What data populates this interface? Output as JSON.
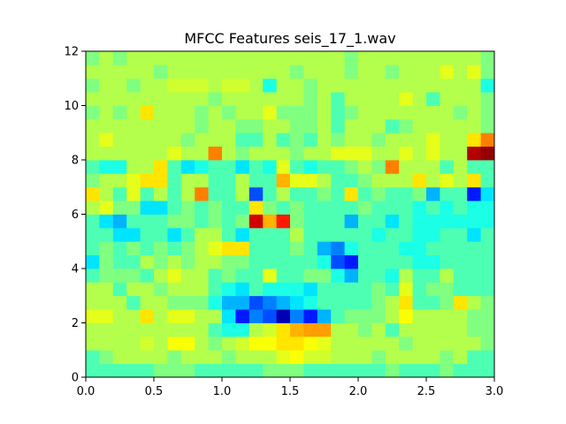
{
  "chart_data": {
    "type": "heatmap",
    "title": "MFCC Features seis_17_1.wav",
    "xlabel": "",
    "ylabel": "",
    "xlim": [
      0,
      3.0
    ],
    "ylim": [
      0,
      12
    ],
    "x_ticks": [
      "0.0",
      "0.5",
      "1.0",
      "1.5",
      "2.0",
      "2.5",
      "3.0"
    ],
    "y_ticks": [
      "0",
      "2",
      "4",
      "6",
      "8",
      "10",
      "12"
    ],
    "colormap": "jet",
    "value_range": [
      0,
      1
    ],
    "n_columns": 30,
    "n_rows": 24,
    "rows_bottom_to_top": [
      [
        0.45,
        0.45,
        0.45,
        0.45,
        0.45,
        0.5,
        0.5,
        0.5,
        0.45,
        0.45,
        0.45,
        0.45,
        0.45,
        0.5,
        0.5,
        0.5,
        0.45,
        0.45,
        0.45,
        0.45,
        0.45,
        0.45,
        0.5,
        0.45,
        0.45,
        0.45,
        0.5,
        0.45,
        0.45,
        0.45
      ],
      [
        0.45,
        0.5,
        0.55,
        0.55,
        0.55,
        0.55,
        0.5,
        0.55,
        0.55,
        0.55,
        0.5,
        0.55,
        0.55,
        0.55,
        0.6,
        0.62,
        0.58,
        0.58,
        0.55,
        0.55,
        0.55,
        0.5,
        0.55,
        0.55,
        0.55,
        0.55,
        0.5,
        0.55,
        0.45,
        0.45
      ],
      [
        0.55,
        0.55,
        0.55,
        0.55,
        0.58,
        0.55,
        0.62,
        0.62,
        0.55,
        0.5,
        0.55,
        0.58,
        0.62,
        0.62,
        0.65,
        0.65,
        0.62,
        0.6,
        0.55,
        0.55,
        0.55,
        0.55,
        0.55,
        0.5,
        0.55,
        0.55,
        0.55,
        0.55,
        0.55,
        0.5
      ],
      [
        0.55,
        0.55,
        0.55,
        0.55,
        0.55,
        0.55,
        0.55,
        0.55,
        0.55,
        0.45,
        0.4,
        0.4,
        0.55,
        0.58,
        0.65,
        0.7,
        0.72,
        0.72,
        0.55,
        0.55,
        0.5,
        0.55,
        0.45,
        0.55,
        0.55,
        0.55,
        0.55,
        0.55,
        0.5,
        0.5
      ],
      [
        0.6,
        0.6,
        0.55,
        0.55,
        0.65,
        0.55,
        0.6,
        0.6,
        0.55,
        0.55,
        0.35,
        0.15,
        0.25,
        0.2,
        0.05,
        0.25,
        0.15,
        0.3,
        0.45,
        0.5,
        0.5,
        0.5,
        0.55,
        0.62,
        0.55,
        0.55,
        0.55,
        0.55,
        0.5,
        0.5
      ],
      [
        0.55,
        0.55,
        0.55,
        0.45,
        0.55,
        0.55,
        0.5,
        0.5,
        0.5,
        0.4,
        0.3,
        0.3,
        0.2,
        0.25,
        0.3,
        0.35,
        0.4,
        0.45,
        0.45,
        0.45,
        0.45,
        0.5,
        0.55,
        0.65,
        0.45,
        0.45,
        0.5,
        0.65,
        0.55,
        0.5
      ],
      [
        0.55,
        0.55,
        0.45,
        0.55,
        0.55,
        0.5,
        0.55,
        0.55,
        0.55,
        0.45,
        0.4,
        0.35,
        0.45,
        0.4,
        0.4,
        0.4,
        0.35,
        0.45,
        0.45,
        0.45,
        0.45,
        0.5,
        0.45,
        0.6,
        0.45,
        0.5,
        0.5,
        0.45,
        0.45,
        0.45
      ],
      [
        0.45,
        0.5,
        0.5,
        0.5,
        0.45,
        0.55,
        0.6,
        0.55,
        0.55,
        0.45,
        0.5,
        0.45,
        0.45,
        0.6,
        0.45,
        0.45,
        0.5,
        0.5,
        0.4,
        0.3,
        0.45,
        0.45,
        0.4,
        0.55,
        0.45,
        0.45,
        0.55,
        0.45,
        0.45,
        0.45
      ],
      [
        0.35,
        0.5,
        0.45,
        0.45,
        0.55,
        0.5,
        0.55,
        0.5,
        0.55,
        0.55,
        0.5,
        0.5,
        0.45,
        0.45,
        0.45,
        0.45,
        0.45,
        0.4,
        0.2,
        0.15,
        0.45,
        0.45,
        0.45,
        0.45,
        0.4,
        0.4,
        0.45,
        0.45,
        0.45,
        0.45
      ],
      [
        0.45,
        0.5,
        0.45,
        0.5,
        0.45,
        0.5,
        0.45,
        0.5,
        0.55,
        0.6,
        0.65,
        0.65,
        0.45,
        0.45,
        0.45,
        0.5,
        0.45,
        0.3,
        0.25,
        0.4,
        0.45,
        0.45,
        0.45,
        0.4,
        0.4,
        0.45,
        0.45,
        0.45,
        0.45,
        0.45
      ],
      [
        0.45,
        0.45,
        0.35,
        0.35,
        0.45,
        0.45,
        0.35,
        0.45,
        0.55,
        0.55,
        0.45,
        0.35,
        0.45,
        0.45,
        0.45,
        0.55,
        0.45,
        0.45,
        0.45,
        0.45,
        0.45,
        0.4,
        0.45,
        0.45,
        0.4,
        0.4,
        0.45,
        0.45,
        0.35,
        0.45
      ],
      [
        0.45,
        0.35,
        0.3,
        0.45,
        0.45,
        0.45,
        0.5,
        0.5,
        0.45,
        0.5,
        0.45,
        0.5,
        0.92,
        0.7,
        0.85,
        0.5,
        0.45,
        0.45,
        0.45,
        0.3,
        0.45,
        0.45,
        0.35,
        0.45,
        0.4,
        0.4,
        0.4,
        0.4,
        0.4,
        0.4
      ],
      [
        0.55,
        0.6,
        0.5,
        0.5,
        0.35,
        0.35,
        0.45,
        0.5,
        0.45,
        0.5,
        0.45,
        0.45,
        0.65,
        0.5,
        0.45,
        0.5,
        0.45,
        0.45,
        0.45,
        0.45,
        0.5,
        0.45,
        0.45,
        0.45,
        0.4,
        0.45,
        0.4,
        0.45,
        0.4,
        0.4
      ],
      [
        0.65,
        0.55,
        0.45,
        0.6,
        0.45,
        0.55,
        0.45,
        0.55,
        0.75,
        0.45,
        0.45,
        0.55,
        0.2,
        0.45,
        0.55,
        0.45,
        0.45,
        0.5,
        0.45,
        0.65,
        0.45,
        0.5,
        0.45,
        0.45,
        0.5,
        0.3,
        0.45,
        0.45,
        0.15,
        0.35
      ],
      [
        0.5,
        0.55,
        0.55,
        0.6,
        0.65,
        0.65,
        0.45,
        0.55,
        0.55,
        0.45,
        0.45,
        0.55,
        0.45,
        0.45,
        0.7,
        0.6,
        0.6,
        0.55,
        0.45,
        0.45,
        0.5,
        0.55,
        0.55,
        0.55,
        0.65,
        0.55,
        0.6,
        0.55,
        0.65,
        0.45
      ],
      [
        0.45,
        0.4,
        0.4,
        0.55,
        0.55,
        0.65,
        0.45,
        0.35,
        0.4,
        0.45,
        0.45,
        0.35,
        0.45,
        0.4,
        0.6,
        0.45,
        0.4,
        0.45,
        0.45,
        0.5,
        0.55,
        0.5,
        0.75,
        0.55,
        0.55,
        0.55,
        0.45,
        0.55,
        0.45,
        0.45
      ],
      [
        0.55,
        0.55,
        0.55,
        0.55,
        0.55,
        0.55,
        0.6,
        0.55,
        0.55,
        0.75,
        0.55,
        0.5,
        0.55,
        0.55,
        0.55,
        0.5,
        0.55,
        0.55,
        0.6,
        0.6,
        0.6,
        0.55,
        0.55,
        0.6,
        0.55,
        0.6,
        0.55,
        0.55,
        0.95,
        0.98
      ],
      [
        0.55,
        0.6,
        0.55,
        0.55,
        0.55,
        0.55,
        0.55,
        0.5,
        0.55,
        0.55,
        0.55,
        0.45,
        0.45,
        0.55,
        0.45,
        0.5,
        0.45,
        0.55,
        0.5,
        0.55,
        0.55,
        0.5,
        0.55,
        0.55,
        0.55,
        0.6,
        0.55,
        0.55,
        0.65,
        0.75
      ],
      [
        0.55,
        0.55,
        0.55,
        0.55,
        0.55,
        0.55,
        0.55,
        0.55,
        0.5,
        0.55,
        0.55,
        0.5,
        0.5,
        0.55,
        0.55,
        0.5,
        0.5,
        0.55,
        0.45,
        0.55,
        0.55,
        0.55,
        0.45,
        0.5,
        0.55,
        0.55,
        0.55,
        0.55,
        0.55,
        0.5
      ],
      [
        0.5,
        0.55,
        0.5,
        0.55,
        0.65,
        0.55,
        0.55,
        0.55,
        0.5,
        0.55,
        0.5,
        0.55,
        0.55,
        0.6,
        0.5,
        0.5,
        0.5,
        0.55,
        0.45,
        0.5,
        0.55,
        0.55,
        0.55,
        0.55,
        0.55,
        0.55,
        0.55,
        0.5,
        0.55,
        0.5
      ],
      [
        0.55,
        0.55,
        0.55,
        0.55,
        0.55,
        0.55,
        0.55,
        0.55,
        0.55,
        0.5,
        0.55,
        0.55,
        0.55,
        0.55,
        0.55,
        0.55,
        0.5,
        0.55,
        0.45,
        0.55,
        0.55,
        0.55,
        0.55,
        0.6,
        0.55,
        0.45,
        0.55,
        0.55,
        0.55,
        0.5
      ],
      [
        0.5,
        0.55,
        0.55,
        0.5,
        0.55,
        0.55,
        0.58,
        0.58,
        0.58,
        0.55,
        0.58,
        0.58,
        0.55,
        0.4,
        0.55,
        0.55,
        0.5,
        0.55,
        0.55,
        0.55,
        0.55,
        0.55,
        0.55,
        0.55,
        0.55,
        0.55,
        0.55,
        0.55,
        0.55,
        0.4
      ],
      [
        0.55,
        0.55,
        0.55,
        0.55,
        0.55,
        0.5,
        0.55,
        0.55,
        0.55,
        0.55,
        0.55,
        0.55,
        0.55,
        0.55,
        0.55,
        0.5,
        0.55,
        0.55,
        0.55,
        0.5,
        0.55,
        0.55,
        0.5,
        0.55,
        0.55,
        0.55,
        0.6,
        0.55,
        0.6,
        0.5
      ],
      [
        0.5,
        0.55,
        0.5,
        0.55,
        0.55,
        0.55,
        0.55,
        0.55,
        0.55,
        0.55,
        0.55,
        0.55,
        0.55,
        0.55,
        0.55,
        0.55,
        0.55,
        0.55,
        0.55,
        0.5,
        0.55,
        0.55,
        0.55,
        0.55,
        0.55,
        0.55,
        0.55,
        0.55,
        0.55,
        0.5
      ]
    ]
  }
}
